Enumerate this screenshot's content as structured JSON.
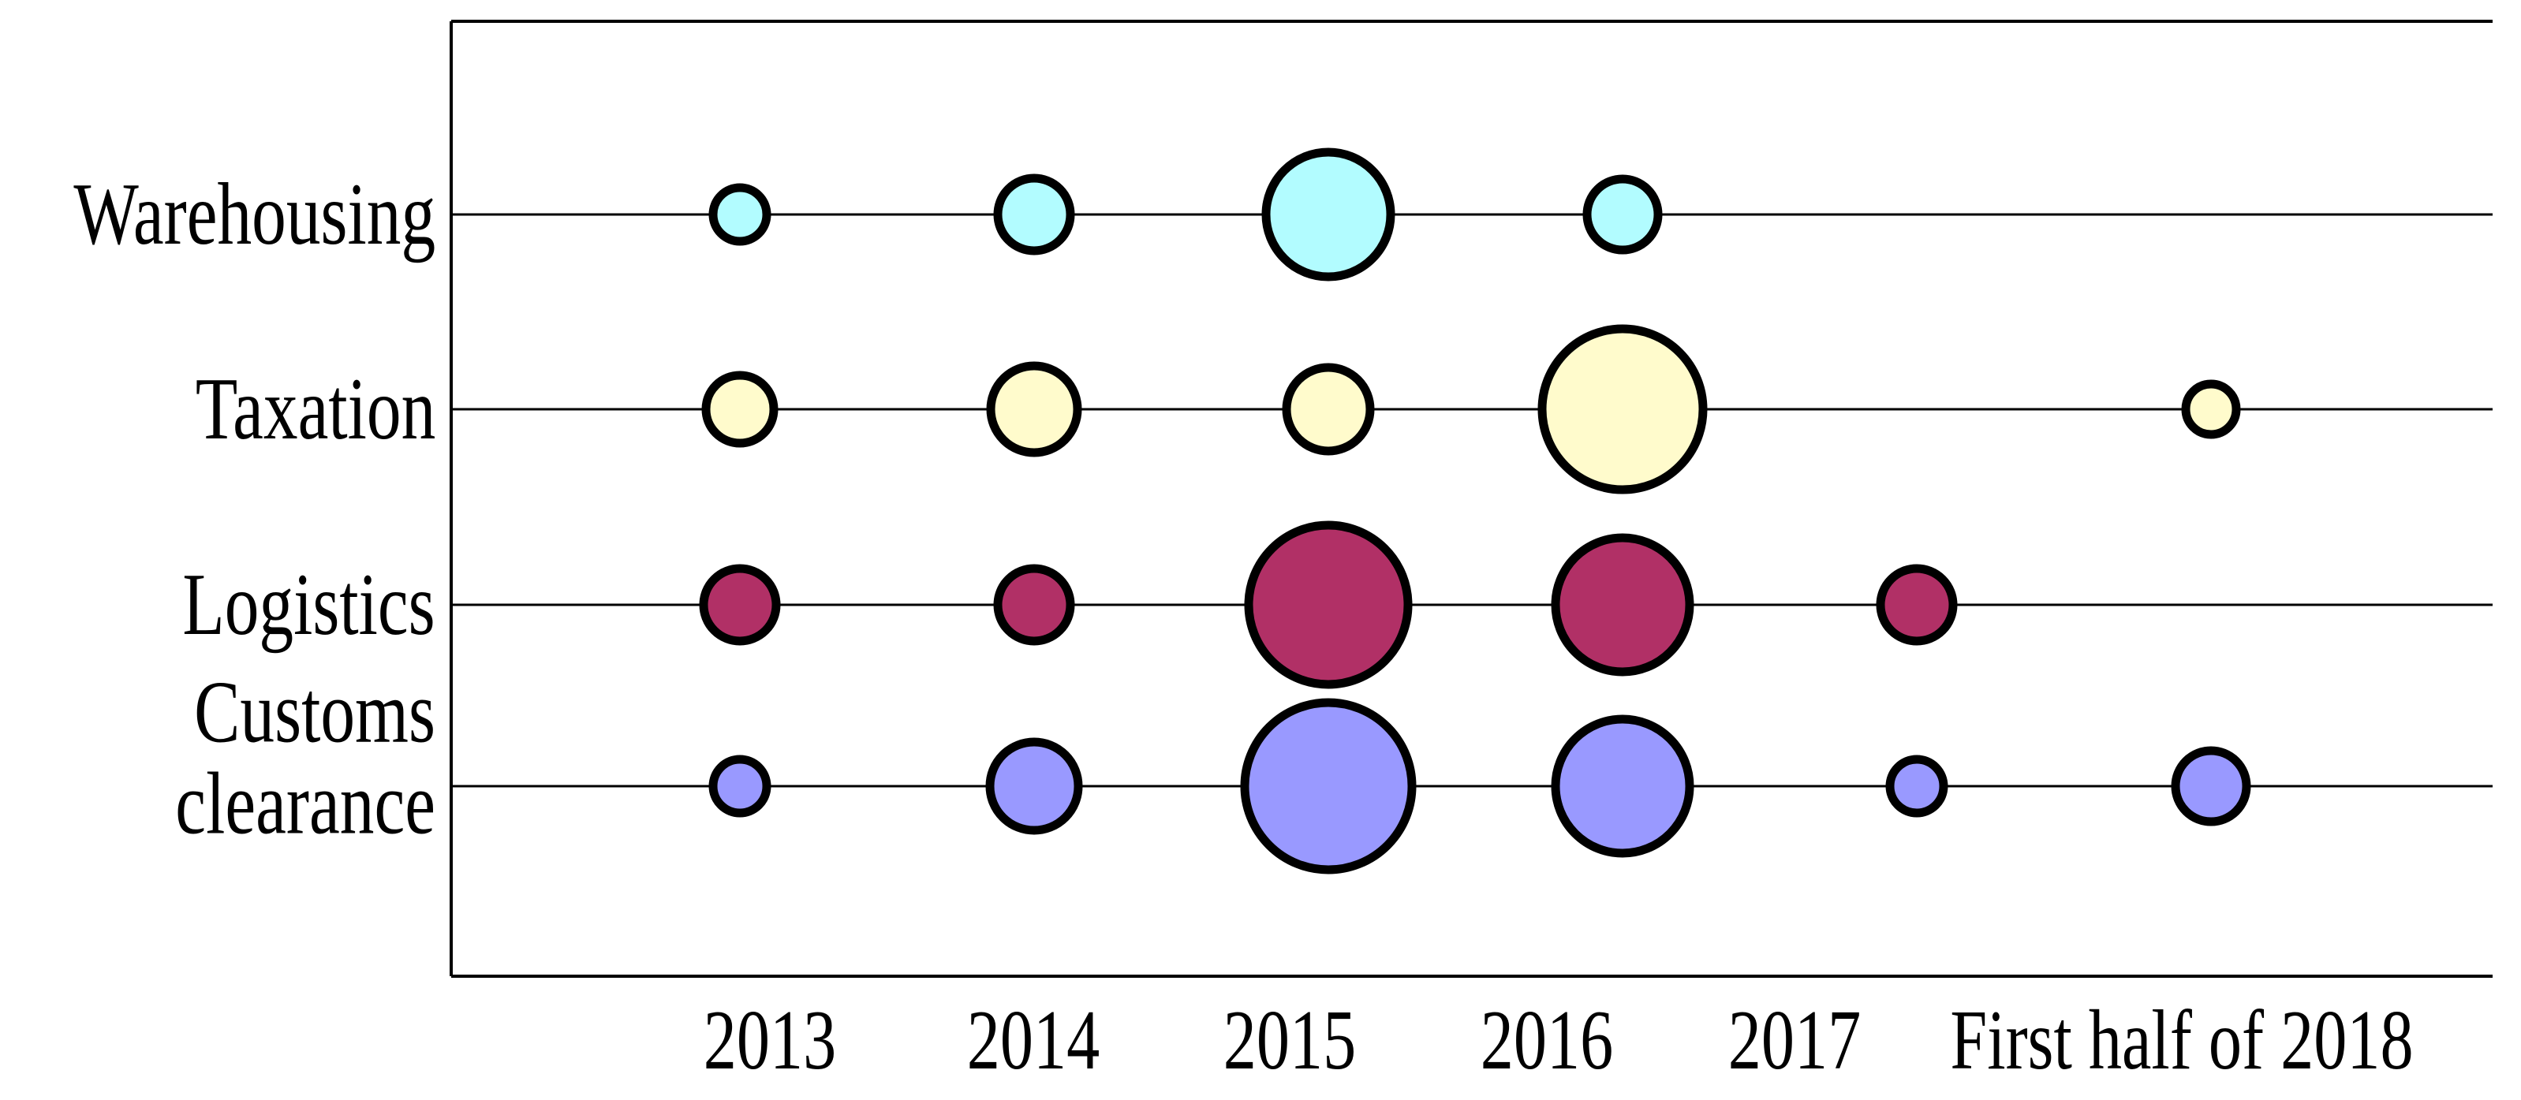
{
  "page": {
    "background_color": "#ffffff",
    "frame_color": "#000000",
    "gridline_color": "#000000",
    "bubble_outline_color": "#000000"
  },
  "chart_data": {
    "type": "bubble",
    "title": "",
    "legend": "none",
    "grid": "one horizontal line per category row; plot framed on left, top and bottom only",
    "x_axis": {
      "tick_labels": [
        "2013",
        "2014",
        "2015",
        "2016",
        "2017",
        "First half of 2018"
      ]
    },
    "y_axis": {
      "tick_labels": [
        "Warehousing",
        "Taxation",
        "Logistics",
        "Customs clearance"
      ]
    },
    "size_metric": "bubble radius in source-image pixels, estimated from the figure (no numeric labels shown in chart)",
    "categories": [
      "2013",
      "2014",
      "2015",
      "2016",
      "2017",
      "First half of 2018"
    ],
    "series": [
      {
        "name": "Warehousing",
        "color": "#B2FCFF",
        "radii": [
          34,
          46,
          79,
          45,
          null,
          null
        ]
      },
      {
        "name": "Taxation",
        "color": "#FFFBCC",
        "radii": [
          43,
          55,
          53,
          102,
          null,
          32
        ]
      },
      {
        "name": "Logistics",
        "color": "#B13066",
        "radii": [
          46,
          46,
          101,
          85,
          46,
          null
        ]
      },
      {
        "name": "Customs clearance",
        "color": "#9999FF",
        "radii": [
          34,
          56,
          106,
          85,
          34,
          45
        ]
      }
    ]
  }
}
